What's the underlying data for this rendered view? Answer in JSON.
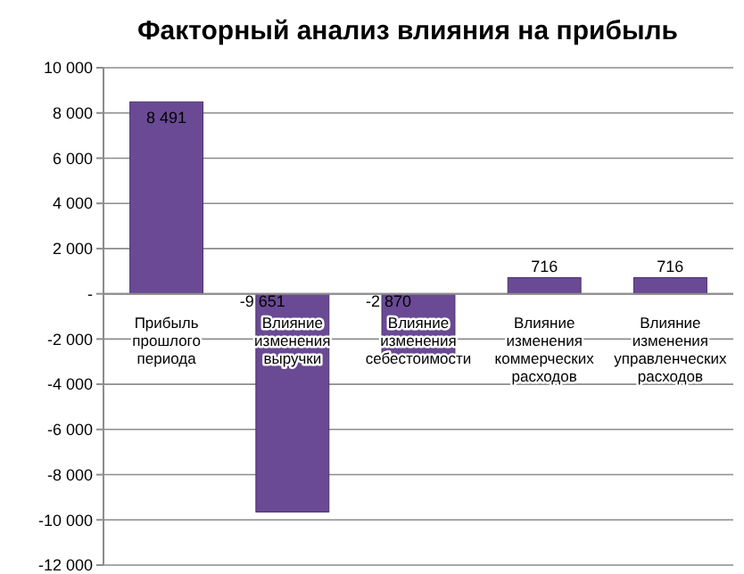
{
  "chart_data": {
    "type": "bar",
    "title": "Факторный анализ влияния на прибыль",
    "categories": [
      "Прибыль прошлого периода",
      "Влияние изменения выручки",
      "Влияние изменения себестоимости",
      "Влияние изменения коммерческих расходов",
      "Влияние изменения управленческих расходов"
    ],
    "values": [
      8491,
      -9651,
      -2870,
      716,
      716
    ],
    "color": "#6a4a94",
    "value_labels": [
      "8 491",
      "-9 651",
      "-2 870",
      "716",
      "716"
    ],
    "ylim": [
      -12000,
      10000
    ],
    "yticks": [
      {
        "value": -12000,
        "label": "-12 000"
      },
      {
        "value": -10000,
        "label": "-10 000"
      },
      {
        "value": -8000,
        "label": "-8 000"
      },
      {
        "value": -6000,
        "label": "-6 000"
      },
      {
        "value": -4000,
        "label": "-4 000"
      },
      {
        "value": -2000,
        "label": "-2 000"
      },
      {
        "value": 0,
        "label": "-"
      },
      {
        "value": 2000,
        "label": "2 000"
      },
      {
        "value": 4000,
        "label": "4 000"
      },
      {
        "value": 6000,
        "label": "6 000"
      },
      {
        "value": 8000,
        "label": "8 000"
      },
      {
        "value": 10000,
        "label": "10 000"
      }
    ],
    "grid": true
  }
}
